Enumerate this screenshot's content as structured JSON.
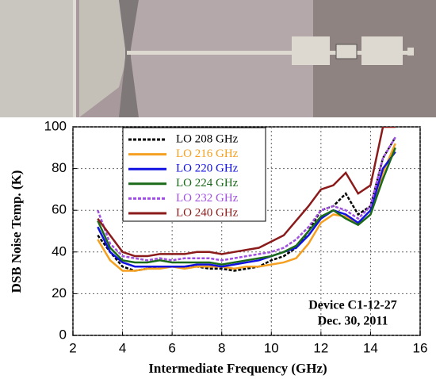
{
  "chart_data": {
    "type": "line",
    "x_label": "Intermediate Frequency (GHz)",
    "y_label": "DSB Noise Temp. (K)",
    "annotations": [
      "Device C1-12-27",
      "Dec. 30, 2011"
    ],
    "x": [
      3,
      3.5,
      4,
      4.5,
      5,
      5.5,
      6,
      6.5,
      7,
      7.5,
      8,
      8.5,
      9,
      9.5,
      10,
      10.5,
      11,
      11.5,
      12,
      12.5,
      13,
      13.5,
      14,
      14.5,
      15
    ],
    "series": [
      {
        "name": "LO 208 GHz",
        "color": "#000000",
        "style": "dashed",
        "values": [
          48,
          40,
          33,
          31,
          32,
          33,
          33,
          33,
          33,
          32,
          32,
          31,
          32,
          33,
          36,
          38,
          42,
          50,
          60,
          62,
          68,
          58,
          62,
          85,
          95
        ]
      },
      {
        "name": "LO 216 GHz",
        "color": "#f5a020",
        "style": "solid",
        "values": [
          46,
          36,
          31,
          31,
          32,
          32,
          33,
          32,
          33,
          33,
          33,
          32,
          33,
          33,
          34,
          35,
          37,
          44,
          54,
          58,
          57,
          53,
          58,
          78,
          92
        ]
      },
      {
        "name": "LO 220 GHz",
        "color": "#1010e0",
        "style": "solid",
        "values": [
          52,
          40,
          35,
          33,
          33,
          33,
          33,
          33,
          34,
          34,
          33,
          34,
          35,
          36,
          38,
          40,
          42,
          48,
          56,
          60,
          58,
          54,
          60,
          80,
          88
        ]
      },
      {
        "name": "LO 224 GHz",
        "color": "#1a6a1a",
        "style": "solid",
        "values": [
          55,
          42,
          36,
          35,
          35,
          36,
          35,
          35,
          35,
          35,
          34,
          35,
          36,
          37,
          38,
          40,
          43,
          50,
          57,
          60,
          56,
          53,
          58,
          75,
          90
        ]
      },
      {
        "name": "LO 232 GHz",
        "color": "#a050e0",
        "style": "dashed",
        "values": [
          60,
          44,
          38,
          37,
          36,
          37,
          36,
          37,
          37,
          37,
          36,
          37,
          38,
          39,
          40,
          42,
          46,
          52,
          60,
          62,
          60,
          56,
          62,
          85,
          95
        ]
      },
      {
        "name": "LO 240 GHz",
        "color": "#8b1a1a",
        "style": "solid",
        "values": [
          56,
          48,
          40,
          38,
          38,
          39,
          39,
          39,
          40,
          40,
          39,
          40,
          41,
          42,
          45,
          48,
          55,
          62,
          70,
          72,
          78,
          68,
          72,
          100,
          100
        ]
      }
    ],
    "xlim": [
      2,
      16
    ],
    "xticks": [
      2,
      4,
      6,
      8,
      10,
      12,
      14,
      16
    ],
    "ylim": [
      0,
      100
    ],
    "yticks": [
      0,
      20,
      40,
      60,
      80,
      100
    ],
    "grid": true
  }
}
